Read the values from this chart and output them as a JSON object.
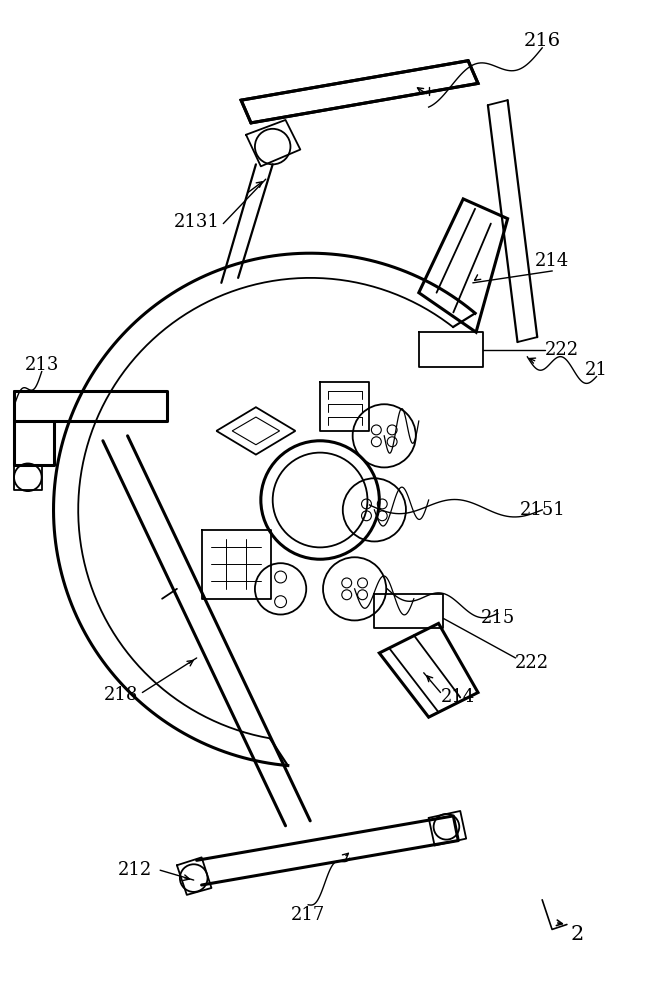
{
  "bg_color": "#ffffff",
  "lc": "#000000",
  "lw": 1.3,
  "lw_thick": 2.2,
  "lw_med": 1.6,
  "fig_w": 6.51,
  "fig_h": 10.0,
  "xlim": [
    0,
    651
  ],
  "ylim": [
    0,
    1000
  ]
}
